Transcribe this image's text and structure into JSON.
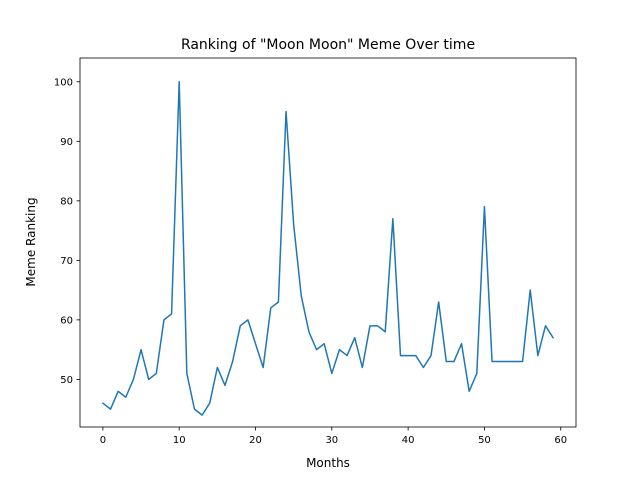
{
  "chart_data": {
    "type": "line",
    "title": "Ranking of \"Moon Moon\" Meme Over time",
    "xlabel": "Months",
    "ylabel": "Meme Ranking",
    "xlim": [
      -3,
      62
    ],
    "ylim": [
      42,
      104
    ],
    "xticks": [
      0,
      10,
      20,
      30,
      40,
      50,
      60
    ],
    "yticks": [
      50,
      60,
      70,
      80,
      90,
      100
    ],
    "grid": false,
    "line_color": "#1f77b4",
    "series": [
      {
        "x": [
          0,
          1,
          2,
          3,
          4,
          5,
          6,
          7,
          8,
          9,
          10,
          11,
          12,
          13,
          14,
          15,
          16,
          17,
          18,
          19,
          20,
          21,
          22,
          23,
          24,
          25,
          26,
          27,
          28,
          29,
          30,
          31,
          32,
          33,
          34,
          35,
          36,
          37,
          38,
          39,
          40,
          41,
          42,
          43,
          44,
          45,
          46,
          47,
          48,
          49,
          50,
          51,
          52,
          53,
          54,
          55,
          56,
          57,
          58,
          59
        ],
        "values": [
          46,
          45,
          48,
          47,
          50,
          55,
          50,
          51,
          60,
          61,
          100,
          51,
          45,
          44,
          46,
          52,
          49,
          53,
          59,
          60,
          56,
          52,
          62,
          63,
          95,
          76,
          64,
          58,
          55,
          56,
          51,
          55,
          54,
          57,
          52,
          59,
          59,
          58,
          77,
          54,
          54,
          54,
          52,
          54,
          63,
          53,
          53,
          56,
          48,
          51,
          79,
          53,
          53,
          53,
          53,
          53,
          65,
          54,
          59,
          57
        ]
      }
    ]
  }
}
